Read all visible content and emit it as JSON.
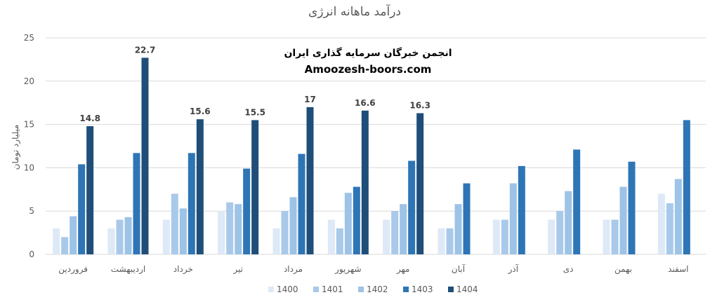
{
  "chart_data": {
    "type": "bar",
    "title": "درآمد ماهانه انرژی",
    "xlabel": "",
    "ylabel": "میلیارد تومان",
    "ylim": [
      0,
      25
    ],
    "yticks": [
      0,
      5,
      10,
      15,
      20,
      25
    ],
    "grid": true,
    "legend_position": "bottom",
    "watermark": [
      "انجمن خبرگان سرمایه گذاری ایران",
      "Amoozesh-boors.com"
    ],
    "categories": [
      "فروردین",
      "اردیبهشت",
      "خرداد",
      "تیر",
      "مرداد",
      "شهریور",
      "مهر",
      "آبان",
      "آذر",
      "دی",
      "بهمن",
      "اسفند"
    ],
    "series": [
      {
        "name": "1400",
        "color": "#dde9f6",
        "values": [
          3,
          3,
          4,
          5,
          3,
          4,
          4,
          3,
          4,
          4,
          4,
          7
        ]
      },
      {
        "name": "1401",
        "color": "#a9c9ea",
        "values": [
          2,
          4,
          7,
          6,
          5,
          3,
          5,
          3,
          4,
          5,
          4,
          5.9
        ]
      },
      {
        "name": "1402",
        "color": "#9dc3e6",
        "values": [
          4.4,
          4.3,
          5.3,
          5.8,
          6.6,
          7.1,
          5.8,
          5.8,
          8.2,
          7.3,
          7.8,
          8.7
        ]
      },
      {
        "name": "1403",
        "color": "#2e75b6",
        "values": [
          10.4,
          11.7,
          11.7,
          9.9,
          11.6,
          7.8,
          10.8,
          8.2,
          10.2,
          12.1,
          10.7,
          15.5
        ]
      },
      {
        "name": "1404",
        "color": "#1f4e79",
        "values": [
          14.8,
          22.7,
          15.6,
          15.5,
          17,
          16.6,
          16.3,
          null,
          null,
          null,
          null,
          null
        ]
      }
    ],
    "data_labels": {
      "series": "1404",
      "values": [
        "14.8",
        "22.7",
        "15.6",
        "15.5",
        "17",
        "16.6",
        "16.3"
      ]
    }
  }
}
